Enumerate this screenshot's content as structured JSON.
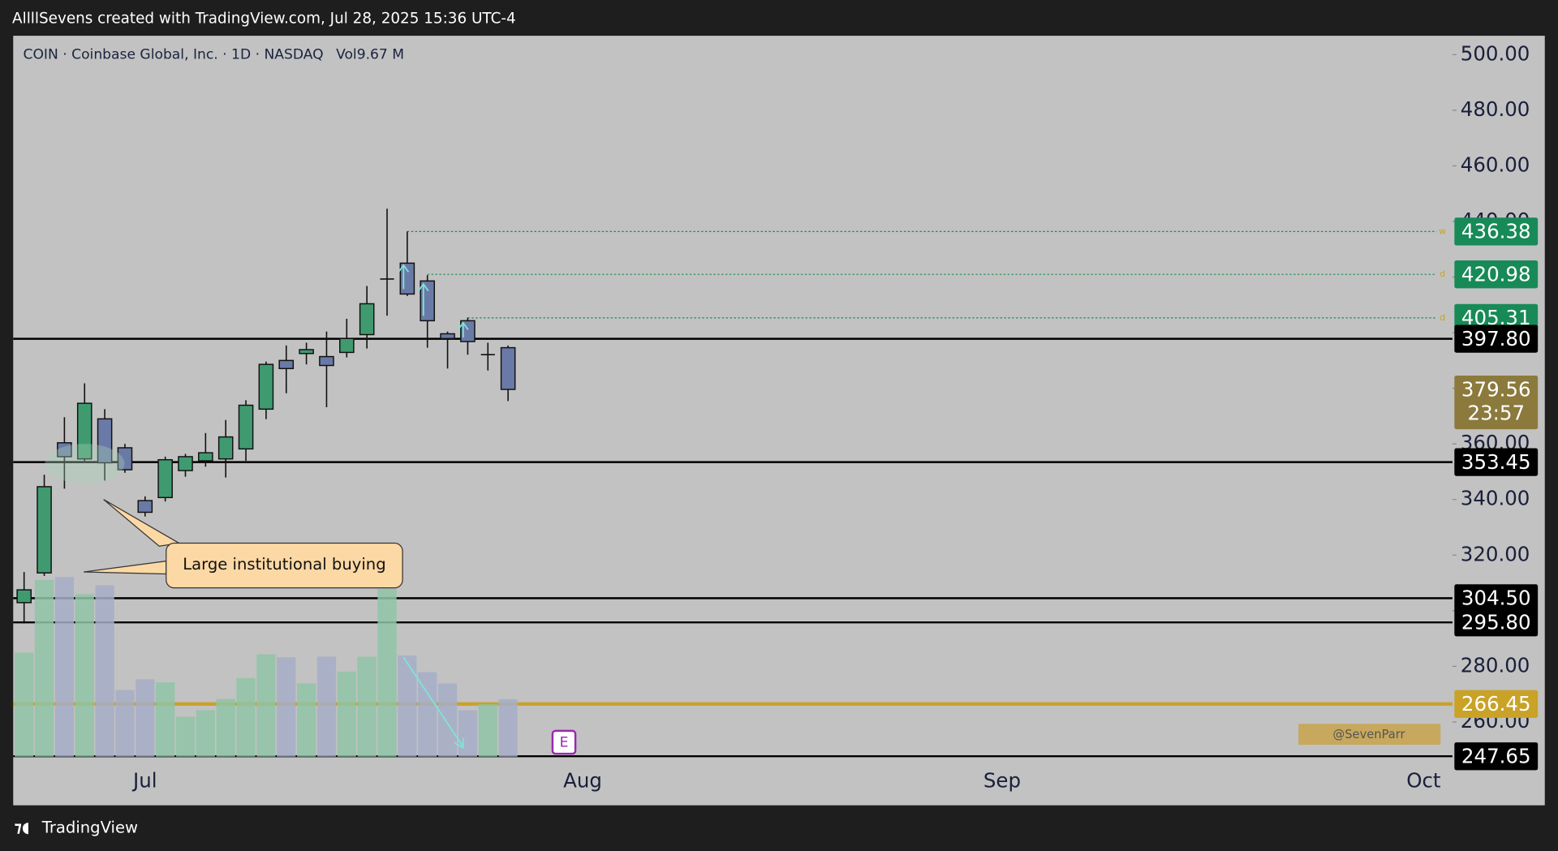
{
  "header": "AllllSevens created with TradingView.com, Jul 28, 2025 15:36 UTC-4",
  "footer": "TradingView",
  "chart_data": {
    "type": "candlestick",
    "title": "COIN · Coinbase Global, Inc. · 1D · NASDAQ",
    "volume_legend": "Vol9.67 M",
    "x": [
      0,
      1,
      2,
      3,
      4,
      5,
      6,
      7,
      8,
      9,
      10,
      11,
      12,
      13,
      14,
      15,
      16,
      17,
      18,
      19,
      20,
      21,
      22,
      23,
      24
    ],
    "open": [
      302.9,
      313.6,
      360.4,
      354.6,
      369.0,
      358.6,
      339.6,
      340.7,
      350.4,
      353.9,
      354.6,
      358.2,
      372.5,
      390.0,
      392.5,
      391.4,
      392.9,
      399.3,
      419.3,
      425.0,
      418.6,
      399.6,
      404.3,
      392.1,
      394.6
    ],
    "high": [
      313.9,
      348.9,
      369.6,
      381.8,
      372.5,
      360.0,
      341.1,
      355.4,
      356.4,
      363.9,
      368.6,
      375.7,
      389.6,
      395.4,
      396.4,
      400.4,
      405.0,
      416.8,
      444.6,
      436.4,
      420.7,
      400.4,
      405.4,
      396.4,
      395.4
    ],
    "low": [
      295.4,
      312.5,
      343.9,
      353.2,
      346.8,
      349.6,
      333.9,
      339.3,
      348.2,
      351.8,
      347.9,
      353.9,
      368.9,
      378.2,
      388.6,
      373.2,
      391.1,
      394.3,
      406.1,
      413.2,
      394.6,
      387.1,
      392.1,
      386.4,
      375.4
    ],
    "close": [
      307.5,
      344.6,
      355.4,
      374.6,
      353.2,
      350.7,
      335.4,
      354.3,
      355.4,
      356.8,
      362.5,
      373.9,
      388.6,
      387.1,
      393.9,
      388.2,
      397.9,
      410.4,
      419.3,
      413.9,
      404.3,
      397.9,
      396.8,
      392.1,
      379.6
    ],
    "volume": [
      17.5,
      29.7,
      30.2,
      27.3,
      28.8,
      11.2,
      13.0,
      12.5,
      6.7,
      7.8,
      9.7,
      13.2,
      17.2,
      16.7,
      12.3,
      16.8,
      14.3,
      16.8,
      28.2,
      17.0,
      14.2,
      12.3,
      7.8,
      8.8,
      9.67
    ],
    "up_color": "#3f9b6f",
    "down_color": "#6a7aa6",
    "volume_up_color": "#8fc4a6",
    "volume_down_color": "#a6aec8",
    "xlim": [
      -0.54,
      70.83
    ],
    "xticks": [
      {
        "value": 6,
        "label": "Jul"
      },
      {
        "value": 27.7,
        "label": "Aug"
      },
      {
        "value": 48.5,
        "label": "Sep"
      },
      {
        "value": 69.4,
        "label": "Oct"
      }
    ],
    "ylim": [
      247.5,
      506.8
    ],
    "yticks": [
      {
        "value": 260,
        "label": "260.00"
      },
      {
        "value": 280,
        "label": "280.00"
      },
      {
        "value": 300,
        "label": "300.00"
      },
      {
        "value": 320,
        "label": "320.00"
      },
      {
        "value": 340,
        "label": "340.00"
      },
      {
        "value": 360,
        "label": "360.00"
      },
      {
        "value": 380,
        "label": "380.00"
      },
      {
        "value": 400,
        "label": "400.00"
      },
      {
        "value": 420,
        "label": "420.00"
      },
      {
        "value": 440,
        "label": "440.00"
      },
      {
        "value": 460,
        "label": "460.00"
      },
      {
        "value": 480,
        "label": "480.00"
      },
      {
        "value": 500,
        "label": "500.00"
      }
    ],
    "levels": [
      {
        "value": 397.8,
        "label": "397.80",
        "color": "#000000"
      },
      {
        "value": 353.45,
        "label": "353.45",
        "color": "#000000"
      },
      {
        "value": 304.5,
        "label": "304.50",
        "color": "#000000"
      },
      {
        "value": 295.8,
        "label": "295.80",
        "color": "#000000"
      },
      {
        "value": 266.45,
        "label": "266.45",
        "color": "#c9a227"
      },
      {
        "value": 247.65,
        "label": "247.65",
        "color": "#000000"
      }
    ],
    "targets": [
      {
        "value": 436.38,
        "label": "436.38",
        "tag": "w",
        "from": 19
      },
      {
        "value": 420.98,
        "label": "420.98",
        "tag": "d",
        "from": 20
      },
      {
        "value": 405.31,
        "label": "405.31",
        "tag": "d",
        "from": 22
      }
    ],
    "last_price": {
      "value": 379.56,
      "label": "379.56",
      "countdown": "23:57"
    },
    "annotations": {
      "callout": "Large institutional buying",
      "earnings": "E",
      "watermark": "@SevenParr"
    }
  }
}
